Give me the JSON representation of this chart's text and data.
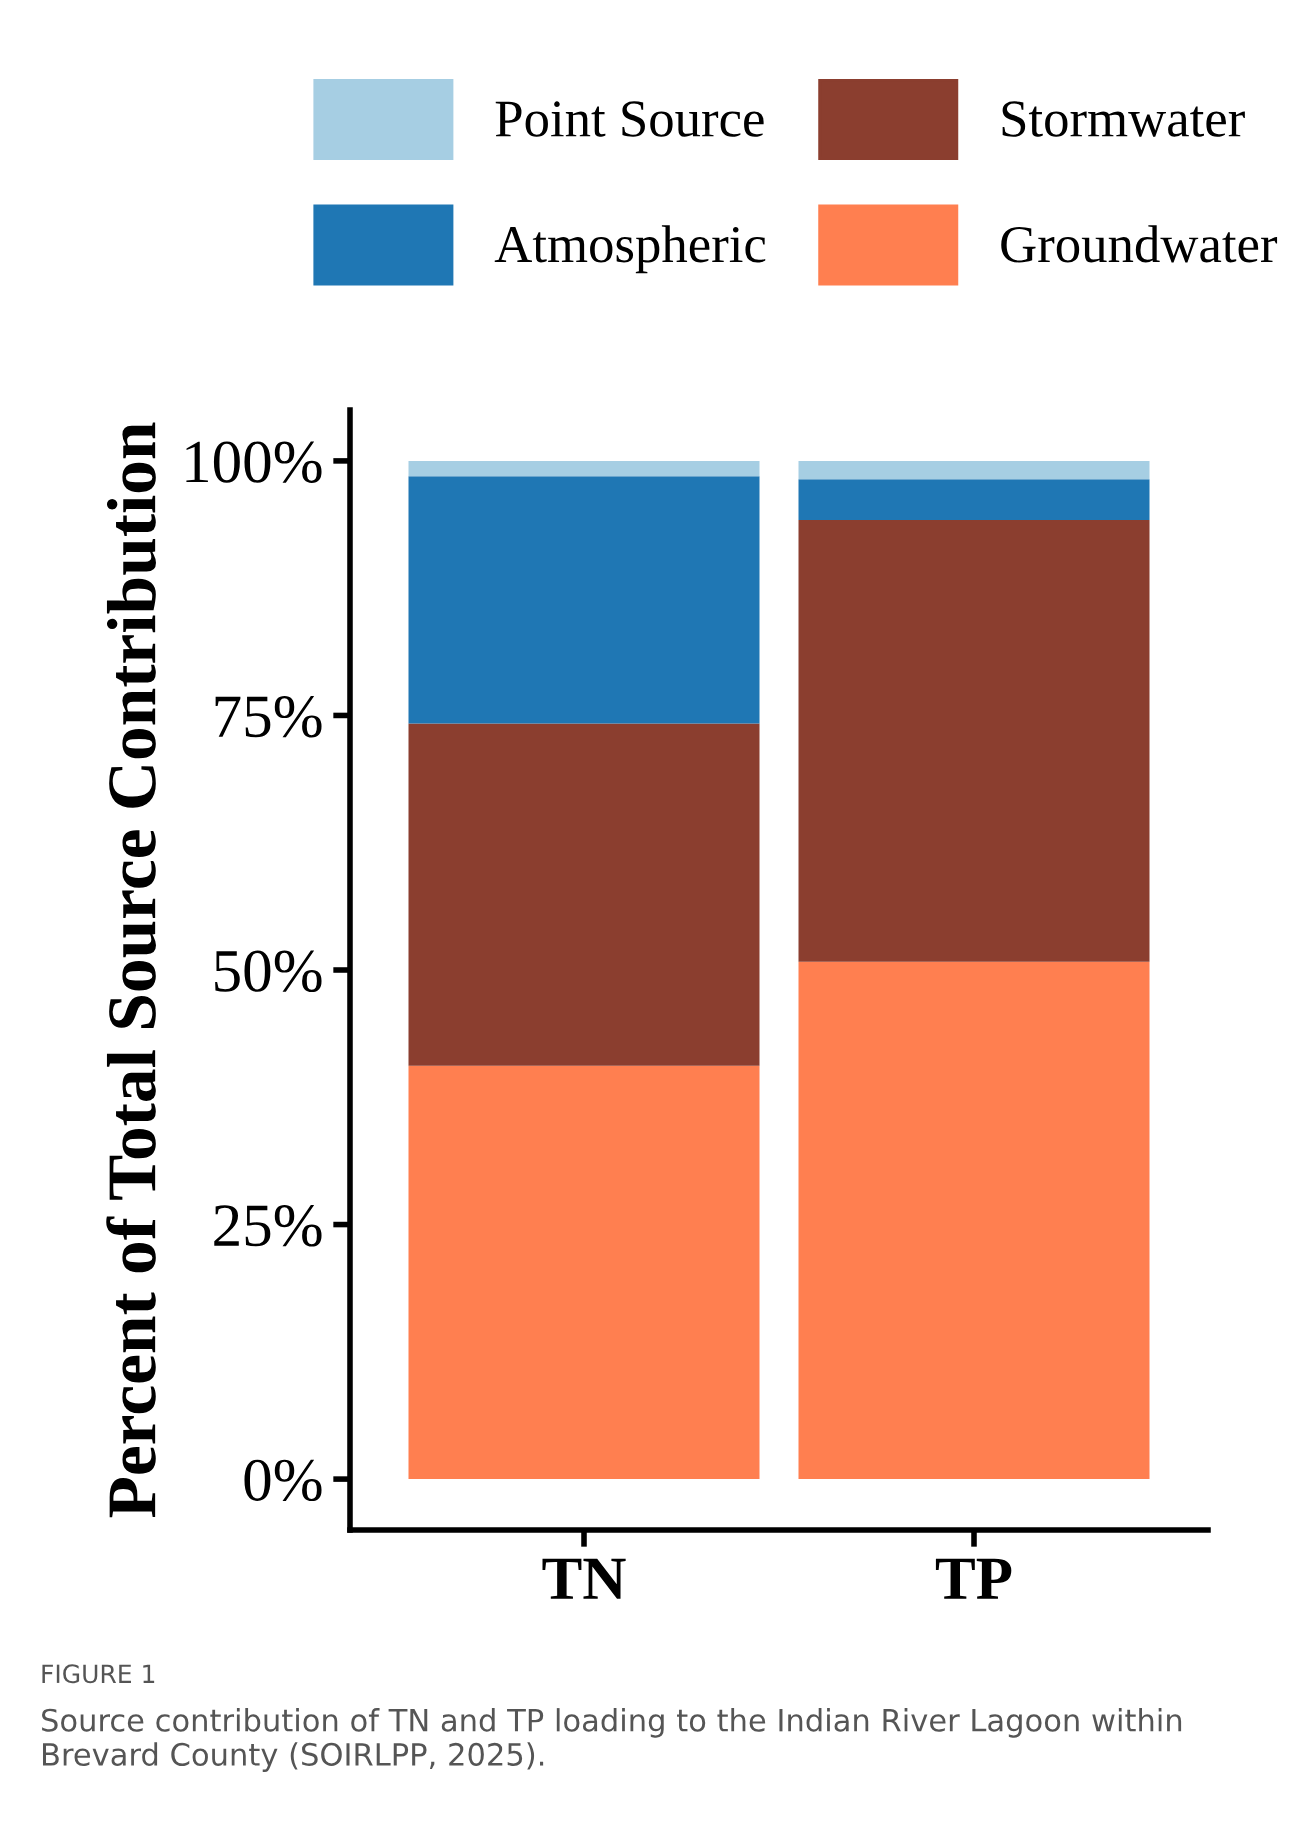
{
  "chart_data": {
    "type": "bar",
    "stacked": true,
    "ylabel": "Percent of Total Source Contribution",
    "categories": [
      "TN",
      "TP"
    ],
    "series": [
      {
        "name": "Groundwater",
        "color": "#ff7f50",
        "values": [
          40.6,
          50.8
        ]
      },
      {
        "name": "Stormwater",
        "color": "#8b3e2f",
        "values": [
          33.6,
          43.4
        ]
      },
      {
        "name": "Atmospheric",
        "color": "#1f77b4",
        "values": [
          24.3,
          4.0
        ]
      },
      {
        "name": "Point Source",
        "color": "#a6cee3",
        "values": [
          1.5,
          1.8
        ]
      }
    ],
    "ylim": [
      -5,
      105
    ],
    "yticks": [
      {
        "value": 0,
        "label": "0%"
      },
      {
        "value": 25,
        "label": "25%"
      },
      {
        "value": 50,
        "label": "50%"
      },
      {
        "value": 75,
        "label": "75%"
      },
      {
        "value": 100,
        "label": "100%"
      }
    ],
    "grid": false,
    "legend": "top",
    "annotations": [
      "FIGURE 1",
      "Source contribution of TN and TP loading to the Indian River Lagoon within Brevard County (SOIRLPP, 2025)."
    ]
  }
}
